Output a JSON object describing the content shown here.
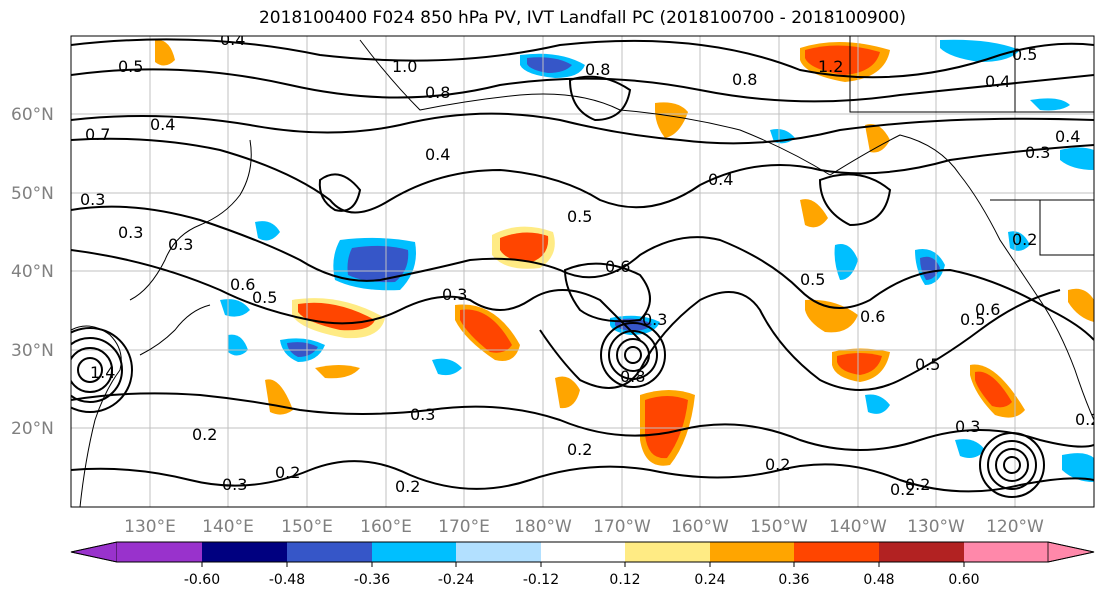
{
  "title": "2018100400 F024 850 hPa PV, IVT Landfall PC (2018100700 - 2018100900)",
  "lat_labels": [
    "60°N",
    "50°N",
    "40°N",
    "30°N",
    "20°N"
  ],
  "lon_labels": [
    "130°E",
    "140°E",
    "150°E",
    "160°E",
    "170°E",
    "180°W",
    "170°W",
    "160°W",
    "150°W",
    "140°W",
    "130°W",
    "120°W"
  ],
  "colorbar": {
    "tick_labels": [
      "-0.60",
      "-0.48",
      "-0.36",
      "-0.24",
      "-0.12",
      "0.12",
      "0.24",
      "0.36",
      "0.48",
      "0.60"
    ],
    "colors": [
      "#9932cc",
      "#000080",
      "#3656c8",
      "#00bfff",
      "#b2e0ff",
      "#ffffff",
      "#ffeb84",
      "#ffa500",
      "#ff4500",
      "#b22222",
      "#ff88aa"
    ]
  },
  "contour_labels": [
    "0.4",
    "0.5",
    "1.0",
    "0.8",
    "0.8",
    "1.2",
    "0.8",
    "0.4",
    "0.4",
    "0.7",
    "0.4",
    "0.3",
    "0.4",
    "0.3",
    "0.2",
    "0.5",
    "0.5",
    "0.6",
    "0.5",
    "0.6",
    "0.3",
    "0.6",
    "0.3",
    "0.8",
    "1.4",
    "0.3",
    "0.2",
    "0.2",
    "0.3",
    "0.2",
    "0.2",
    "0.2",
    "0.2",
    "0.3",
    "0.5",
    "0.5",
    "0.6",
    "0.2",
    "0.3",
    "0.5",
    "0.4",
    "0.2",
    "0.3"
  ],
  "chart_data": {
    "type": "map",
    "field": "850 hPa PV contours with IVT Landfall PC shading",
    "shading_levels": [
      -0.6,
      -0.48,
      -0.36,
      -0.24,
      -0.12,
      0.12,
      0.24,
      0.36,
      0.48,
      0.6
    ],
    "extent": {
      "lon": [
        "120°E",
        "115°W"
      ],
      "lat": [
        "10°N",
        "70°N"
      ]
    }
  }
}
